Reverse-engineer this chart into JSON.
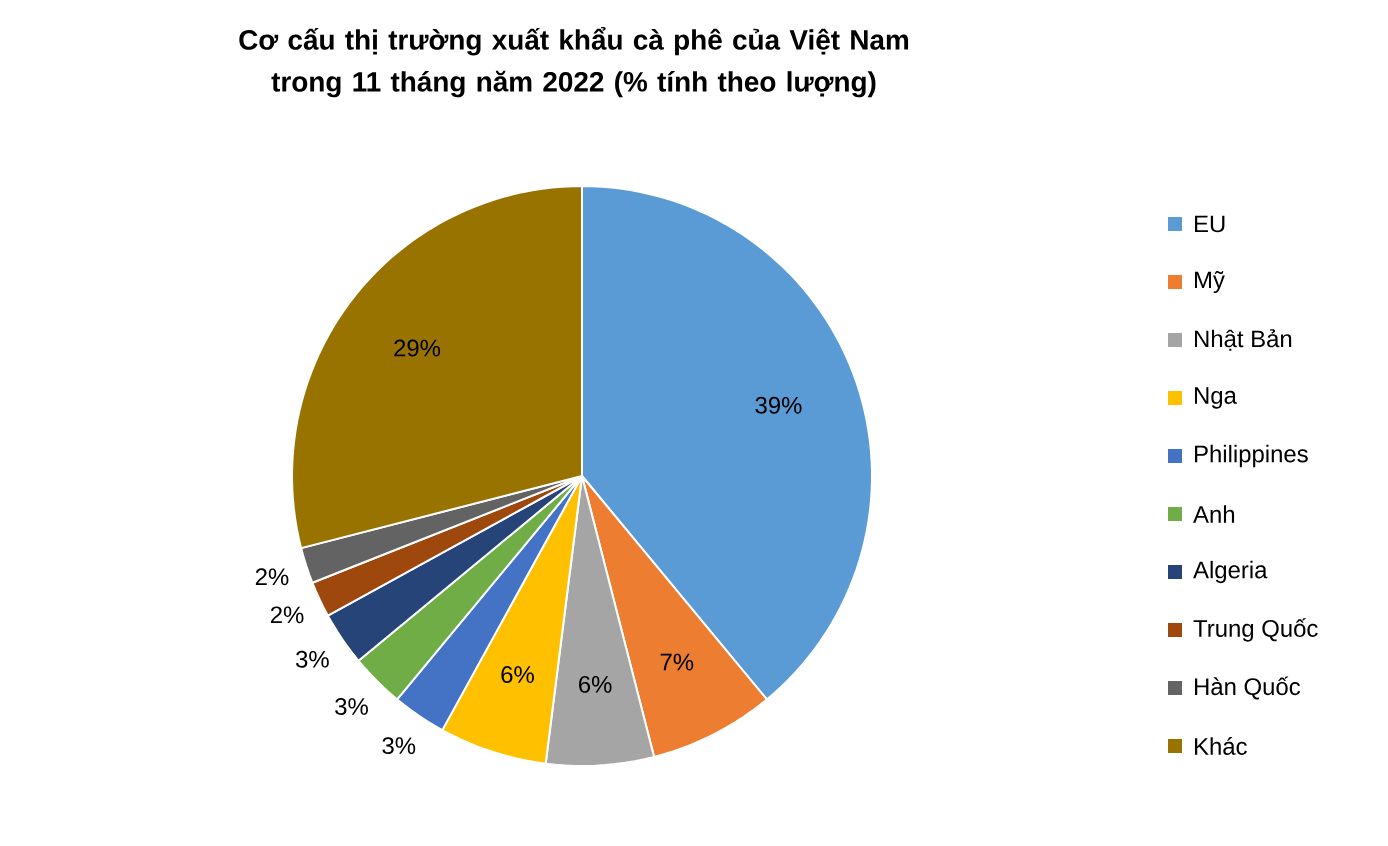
{
  "chart_data": {
    "type": "pie",
    "title": "Cơ cấu thị trường xuất khẩu cà phê của Việt Nam trong 11 tháng năm 2022 (% tính theo lượng)",
    "categories": [
      "EU",
      "Mỹ",
      "Nhật Bản",
      "Nga",
      "Philippines",
      "Anh",
      "Algeria",
      "Trung Quốc",
      "Hàn Quốc",
      "Khác"
    ],
    "values": [
      39,
      7,
      6,
      6,
      3,
      3,
      3,
      2,
      2,
      29
    ],
    "value_labels": [
      "39%",
      "7%",
      "6%",
      "6%",
      "3%",
      "3%",
      "3%",
      "2%",
      "2%",
      "29%"
    ],
    "colors": [
      "#5b9bd5",
      "#ed7d31",
      "#a5a5a5",
      "#ffc000",
      "#4472c4",
      "#70ad47",
      "#264478",
      "#9e480e",
      "#636363",
      "#997300"
    ],
    "legend": "right"
  }
}
